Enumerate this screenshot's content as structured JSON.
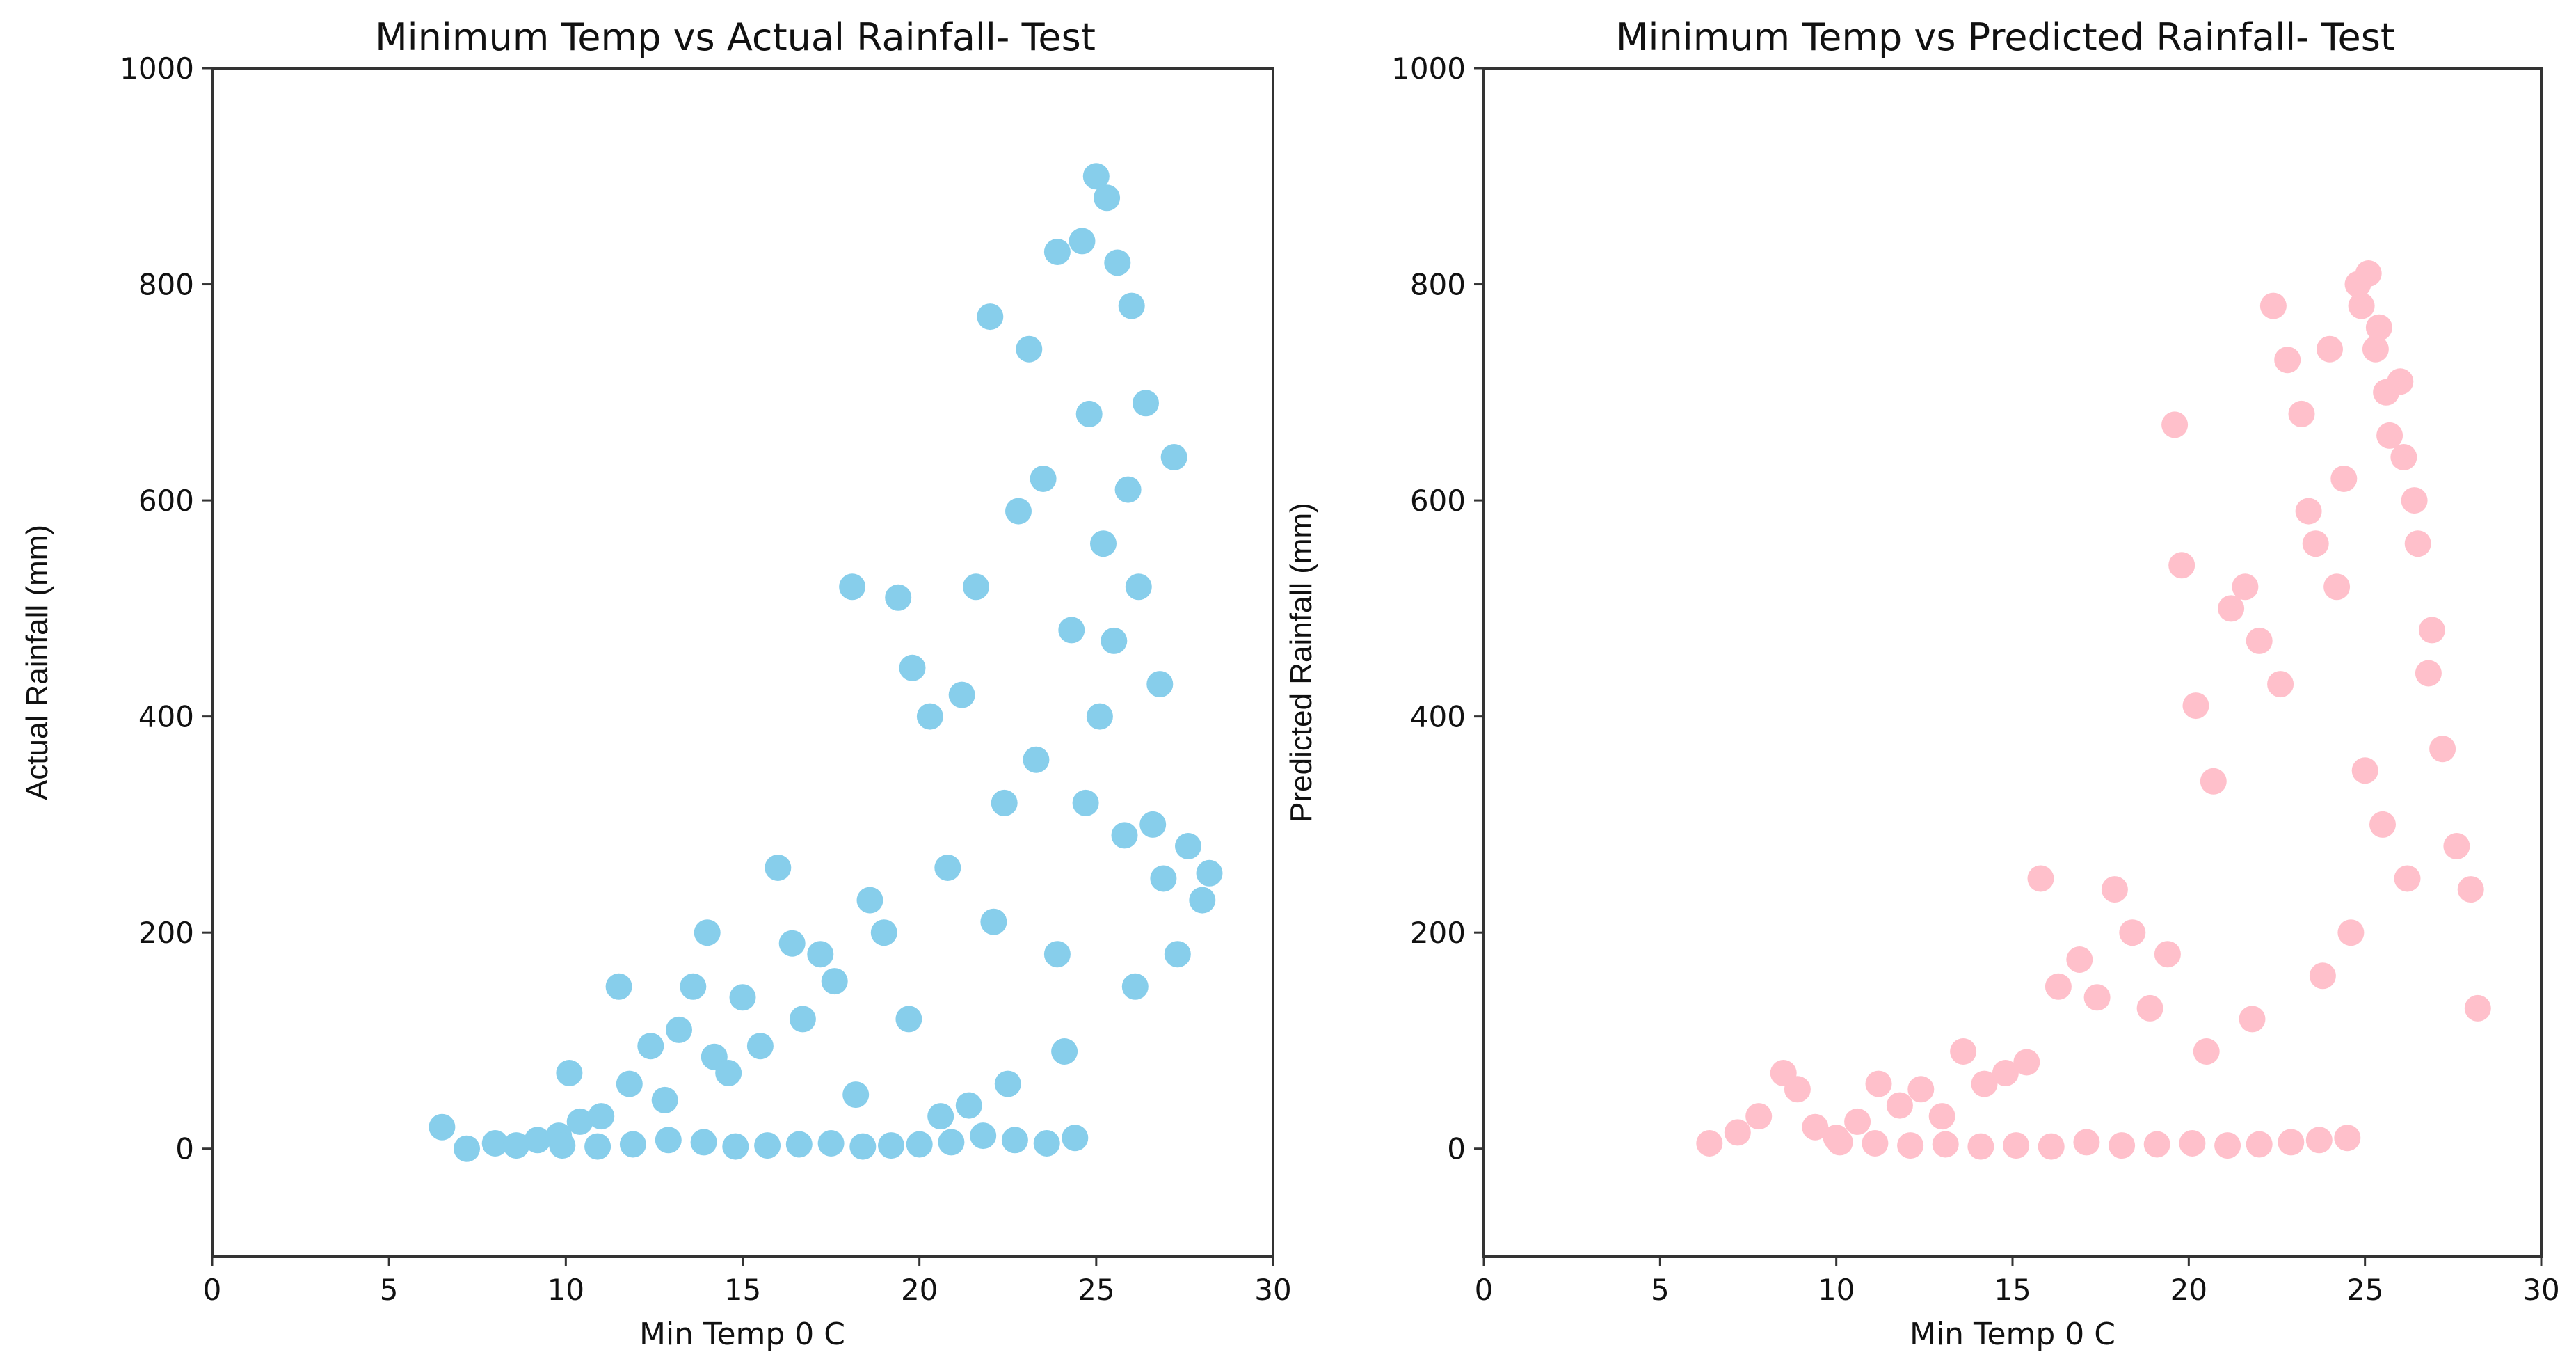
{
  "chart_data": [
    {
      "type": "scatter",
      "title": "Minimum Temp vs Actual Rainfall- Test",
      "xlabel": "Min Temp 0 C",
      "ylabel": "Actual Rainfall (mm)",
      "xlim": [
        0,
        30
      ],
      "ylim": [
        -100,
        1000
      ],
      "xticks": [
        "0",
        "5",
        "10",
        "15",
        "20",
        "25",
        "30"
      ],
      "yticks": [
        "0",
        "200",
        "400",
        "600",
        "800",
        "1000"
      ],
      "grid": false,
      "color": "#87ceeb",
      "series": [
        {
          "x": [
            6.5,
            7.2,
            8.0,
            8.6,
            9.2,
            9.8,
            10.1,
            10.4,
            11.0,
            11.5,
            11.8,
            12.4,
            12.8,
            13.2,
            13.6,
            14.0,
            14.2,
            14.6,
            15.0,
            15.5,
            16.0,
            16.4,
            16.7,
            17.2,
            17.6,
            18.1,
            18.6,
            19.0,
            19.4,
            19.8,
            20.3,
            20.8,
            21.2,
            21.6,
            22.0,
            22.4,
            22.8,
            23.1,
            23.5,
            23.9,
            24.3,
            24.6,
            25.0,
            25.3,
            25.6,
            26.0,
            26.4,
            26.8,
            27.2,
            27.6,
            28.0,
            28.2,
            18.2,
            19.7,
            22.1,
            23.3,
            24.8,
            25.2,
            25.5,
            25.9,
            26.2,
            26.6,
            26.9,
            27.3,
            24.4,
            23.6,
            22.7,
            21.8,
            20.9,
            20.0,
            19.2,
            18.4,
            17.5,
            16.6,
            15.7,
            14.8,
            13.9,
            12.9,
            11.9,
            10.9,
            9.9,
            25.1,
            24.7,
            25.8,
            26.1,
            23.9,
            24.1,
            22.5,
            21.4,
            20.6
          ],
          "y": [
            20,
            0,
            5,
            3,
            8,
            12,
            70,
            25,
            30,
            150,
            60,
            95,
            45,
            110,
            150,
            200,
            85,
            70,
            140,
            95,
            260,
            190,
            120,
            180,
            155,
            520,
            230,
            200,
            510,
            445,
            400,
            260,
            420,
            520,
            770,
            320,
            590,
            740,
            620,
            830,
            480,
            840,
            900,
            880,
            820,
            780,
            690,
            430,
            640,
            280,
            230,
            255,
            50,
            120,
            210,
            360,
            680,
            560,
            470,
            610,
            520,
            300,
            250,
            180,
            10,
            5,
            8,
            12,
            6,
            4,
            3,
            2,
            5,
            4,
            3,
            2,
            6,
            8,
            4,
            2,
            3,
            400,
            320,
            290,
            150,
            180,
            90,
            60,
            40,
            30
          ]
        }
      ]
    },
    {
      "type": "scatter",
      "title": "Minimum Temp vs Predicted Rainfall- Test",
      "xlabel": "Min Temp 0 C",
      "ylabel": "Predicted Rainfall (mm)",
      "xlim": [
        0,
        30
      ],
      "ylim": [
        -100,
        1000
      ],
      "xticks": [
        "0",
        "5",
        "10",
        "15",
        "20",
        "25",
        "30"
      ],
      "yticks": [
        "0",
        "200",
        "400",
        "600",
        "800",
        "1000"
      ],
      "grid": false,
      "color": "#ffc0cb",
      "series": [
        {
          "x": [
            6.4,
            7.2,
            7.8,
            8.5,
            8.9,
            9.4,
            10.0,
            10.6,
            11.2,
            11.8,
            12.4,
            13.0,
            13.6,
            14.2,
            14.8,
            15.4,
            15.8,
            16.3,
            16.9,
            17.4,
            17.9,
            18.4,
            18.9,
            19.4,
            19.8,
            20.2,
            20.7,
            21.2,
            21.6,
            22.0,
            22.4,
            22.8,
            23.2,
            23.6,
            24.0,
            24.4,
            24.8,
            25.1,
            25.4,
            25.7,
            26.0,
            26.4,
            26.8,
            27.2,
            27.6,
            28.0,
            28.2,
            19.6,
            22.6,
            23.4,
            24.2,
            24.9,
            25.3,
            25.6,
            26.1,
            26.5,
            26.9,
            24.5,
            23.7,
            22.9,
            22.0,
            21.1,
            20.1,
            19.1,
            18.1,
            17.1,
            16.1,
            15.1,
            14.1,
            13.1,
            12.1,
            11.1,
            10.1,
            25.0,
            25.5,
            26.2,
            24.6,
            23.8,
            21.8,
            20.5
          ],
          "y": [
            5,
            15,
            30,
            70,
            55,
            20,
            10,
            25,
            60,
            40,
            55,
            30,
            90,
            60,
            70,
            80,
            250,
            150,
            175,
            140,
            240,
            200,
            130,
            180,
            540,
            410,
            340,
            500,
            520,
            470,
            780,
            730,
            680,
            560,
            740,
            620,
            800,
            810,
            760,
            660,
            710,
            600,
            440,
            370,
            280,
            240,
            130,
            670,
            430,
            590,
            520,
            780,
            740,
            700,
            640,
            560,
            480,
            10,
            8,
            6,
            4,
            3,
            5,
            4,
            3,
            6,
            2,
            3,
            2,
            4,
            3,
            5,
            6,
            350,
            300,
            250,
            200,
            160,
            120,
            90
          ]
        }
      ]
    }
  ]
}
